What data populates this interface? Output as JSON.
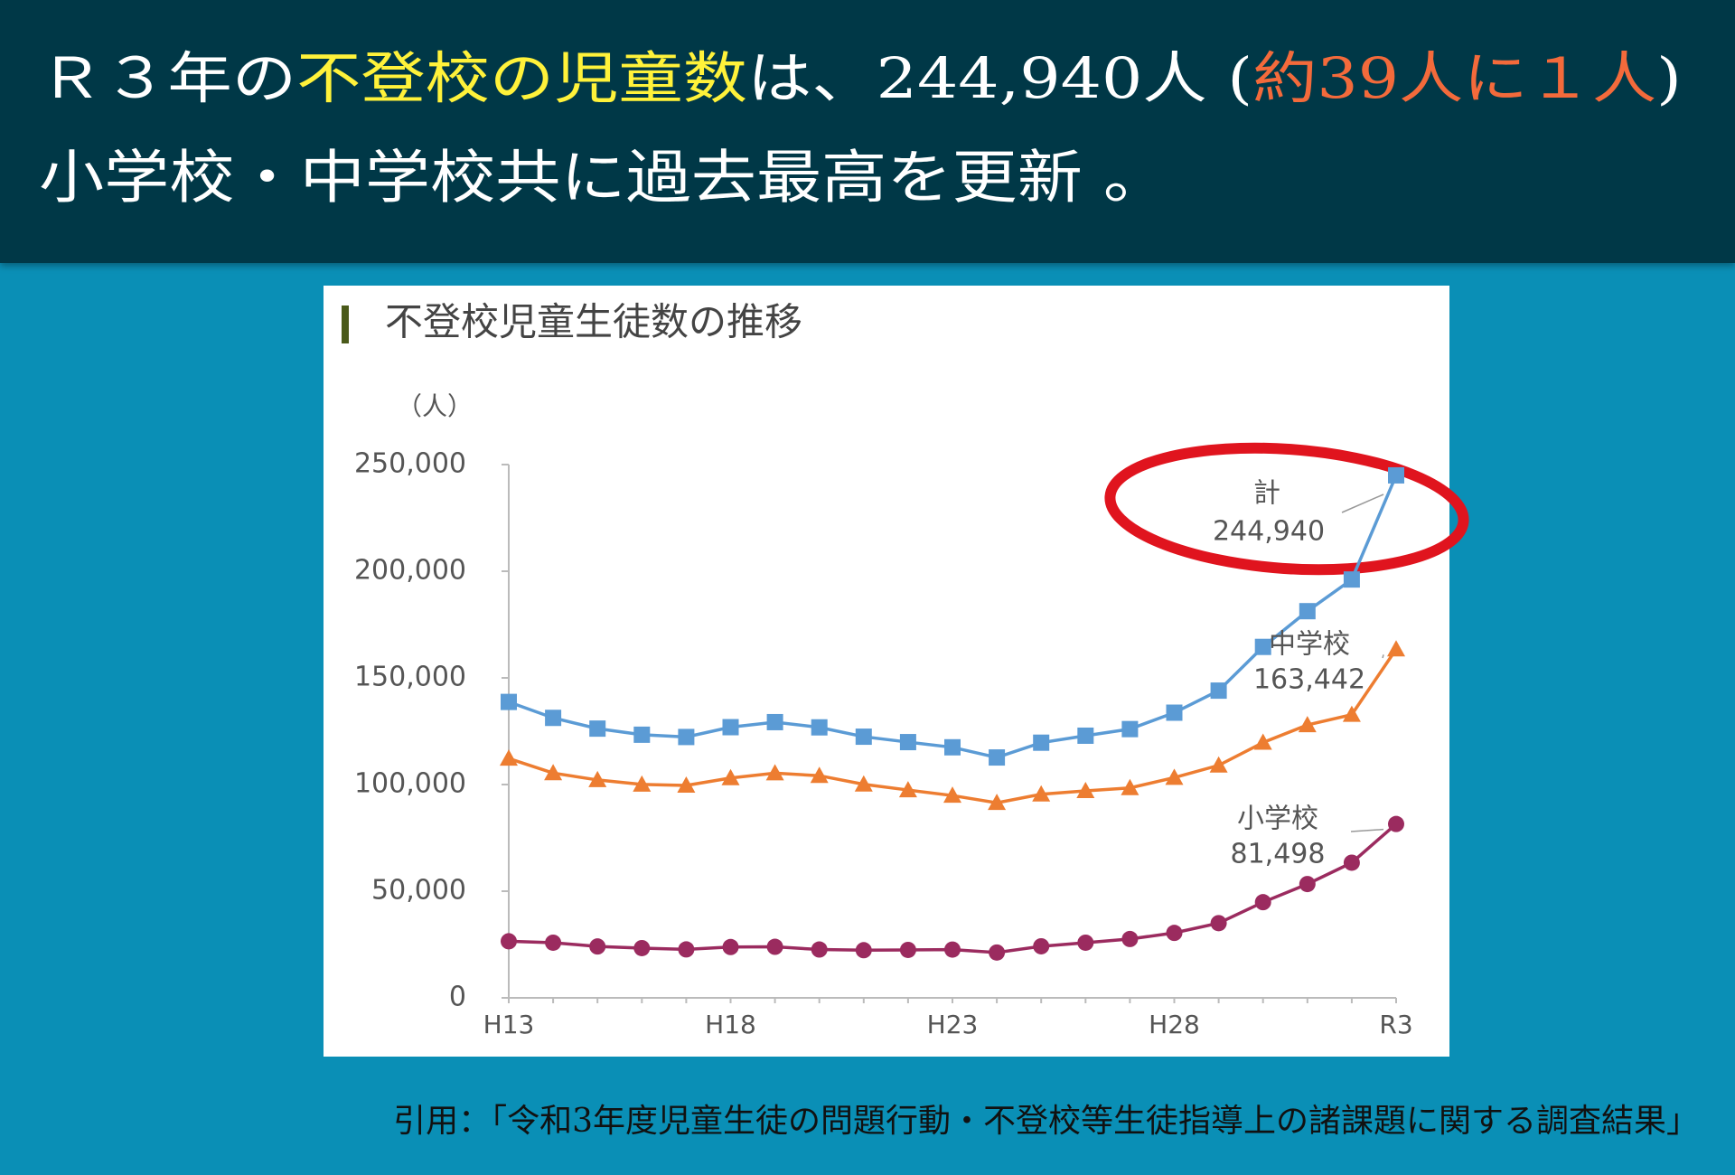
{
  "header": {
    "line1": [
      {
        "text": "Ｒ３年の",
        "color": "#ffffff"
      },
      {
        "text": "不登校の児童数",
        "color": "#fff23a"
      },
      {
        "text": "は、244,940人 (",
        "color": "#ffffff"
      },
      {
        "text": "約39人に１人",
        "color": "#f36a3b"
      },
      {
        "text": ")",
        "color": "#ffffff"
      }
    ],
    "line2": "小学校・中学校共に過去最高を更新 。"
  },
  "chart_data": {
    "type": "line",
    "title": "不登校児童生徒数の推移",
    "y_label": "（人）",
    "categories": [
      "H13",
      null,
      null,
      null,
      null,
      "H18",
      null,
      null,
      null,
      null,
      "H23",
      null,
      null,
      null,
      null,
      "H28",
      null,
      null,
      null,
      null,
      "R3"
    ],
    "series": [
      {
        "name": "計",
        "color": "#5b9bd5",
        "marker": "square",
        "values": [
          138722,
          131252,
          126226,
          123358,
          122287,
          126894,
          129255,
          126805,
          122432,
          119891,
          117458,
          112689,
          119617,
          122897,
          125991,
          133683,
          144031,
          164528,
          181272,
          196127,
          244940
        ]
      },
      {
        "name": "中学校",
        "color": "#ed7d31",
        "marker": "triangle",
        "values": [
          112211,
          105383,
          102149,
          100040,
          99578,
          103069,
          105328,
          104153,
          100105,
          97428,
          94836,
          91446,
          95442,
          97033,
          98408,
          103235,
          108999,
          119687,
          127922,
          132777,
          163442
        ]
      },
      {
        "name": "小学校",
        "color": "#9b2b5f",
        "marker": "circle",
        "values": [
          26511,
          25869,
          24077,
          23318,
          22709,
          23825,
          23927,
          22652,
          22327,
          22463,
          22622,
          21243,
          24175,
          25864,
          27583,
          30448,
          35032,
          44841,
          53350,
          63350,
          81498
        ]
      }
    ],
    "annotations": [
      {
        "series": 0,
        "label": "計",
        "value_label": "244,940"
      },
      {
        "series": 1,
        "label": "中学校",
        "value_label": "163,442"
      },
      {
        "series": 2,
        "label": "小学校",
        "value_label": "81,498"
      }
    ],
    "ylim": [
      0,
      250000
    ],
    "yticks": [
      0,
      {
        "value": 50000,
        "label": "50,000"
      },
      {
        "value": 100000,
        "label": "100,000"
      },
      {
        "value": 150000,
        "label": "150,000"
      },
      {
        "value": 200000,
        "label": "200,000"
      },
      {
        "value": 250000,
        "label": "250,000"
      }
    ],
    "grid": false
  },
  "citation": "引用：「令和3年度児童生徒の問題行動・不登校等生徒指導上の諸課題に関する調査結果」"
}
